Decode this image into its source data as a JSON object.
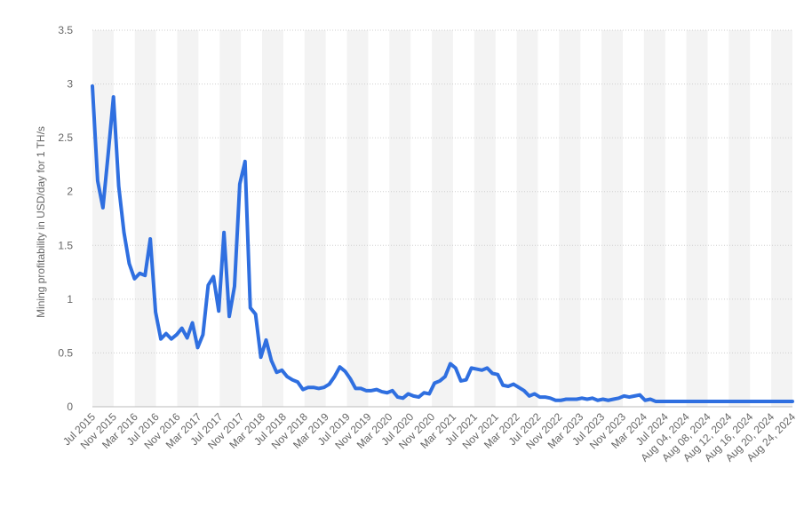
{
  "chart_data": {
    "type": "line",
    "title": "",
    "xlabel": "",
    "ylabel": "Mining profitability in USD/day for 1 TH/s",
    "ylim": [
      0,
      3.5
    ],
    "yticks": [
      0,
      0.5,
      1,
      1.5,
      2,
      2.5,
      3,
      3.5
    ],
    "ytick_labels": [
      "0",
      "0.5",
      "1",
      "1.5",
      "2",
      "2.5",
      "3",
      "3.5"
    ],
    "grid": true,
    "line_color": "#2f6fe0",
    "x_tick_labels": [
      "Jul 2015",
      "Nov 2015",
      "Mar 2016",
      "Jul 2016",
      "Nov 2016",
      "Mar 2017",
      "Jul 2017",
      "Nov 2017",
      "Mar 2018",
      "Jul 2018",
      "Nov 2018",
      "Mar 2019",
      "Jul 2019",
      "Nov 2019",
      "Mar 2020",
      "Jul 2020",
      "Nov 2020",
      "Mar 2021",
      "Jul 2021",
      "Nov 2021",
      "Mar 2022",
      "Jul 2022",
      "Nov 2022",
      "Mar 2023",
      "Jul 2023",
      "Nov 2023",
      "Mar 2024",
      "Jul 2024",
      "Aug 04, 2024",
      "Aug 08, 2024",
      "Aug 12, 2024",
      "Aug 16, 2024",
      "Aug 20, 2024",
      "Aug 24, 2024"
    ],
    "series": [
      {
        "values": [
          2.98,
          2.1,
          1.85,
          2.35,
          2.88,
          2.05,
          1.62,
          1.33,
          1.19,
          1.24,
          1.22,
          1.56,
          0.88,
          0.63,
          0.68,
          0.63,
          0.67,
          0.73,
          0.64,
          0.78,
          0.55,
          0.67,
          1.13,
          1.21,
          0.89,
          1.62,
          0.84,
          1.12,
          2.07,
          2.28,
          0.92,
          0.86,
          0.46,
          0.62,
          0.43,
          0.32,
          0.34,
          0.28,
          0.25,
          0.23,
          0.16,
          0.18,
          0.18,
          0.17,
          0.18,
          0.21,
          0.28,
          0.37,
          0.33,
          0.26,
          0.17,
          0.17,
          0.15,
          0.15,
          0.16,
          0.14,
          0.13,
          0.15,
          0.09,
          0.08,
          0.12,
          0.1,
          0.09,
          0.13,
          0.12,
          0.22,
          0.24,
          0.28,
          0.4,
          0.36,
          0.24,
          0.25,
          0.36,
          0.35,
          0.34,
          0.36,
          0.31,
          0.3,
          0.2,
          0.19,
          0.21,
          0.18,
          0.15,
          0.1,
          0.12,
          0.09,
          0.09,
          0.08,
          0.06,
          0.06,
          0.07,
          0.07,
          0.07,
          0.08,
          0.07,
          0.08,
          0.06,
          0.07,
          0.06,
          0.07,
          0.08,
          0.1,
          0.09,
          0.1,
          0.11,
          0.06,
          0.07,
          0.05,
          0.05,
          0.05,
          0.05,
          0.05,
          0.05,
          0.05,
          0.05,
          0.05,
          0.05,
          0.05,
          0.05,
          0.05,
          0.05,
          0.05,
          0.05,
          0.05,
          0.05,
          0.05,
          0.05,
          0.05,
          0.05,
          0.05,
          0.05,
          0.05,
          0.05,
          0.05
        ]
      }
    ]
  }
}
